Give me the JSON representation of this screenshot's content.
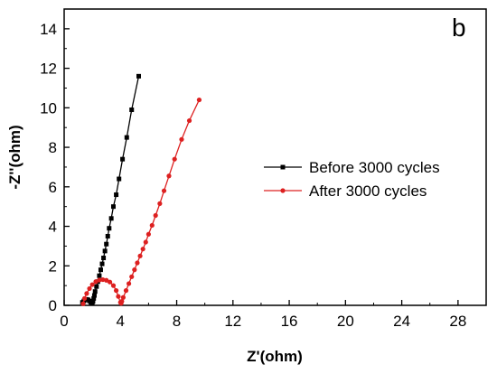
{
  "chart_data": {
    "type": "line",
    "panel_label": "b",
    "xlabel": "Z'(ohm)",
    "ylabel": "-Z''(ohm)",
    "xlim": [
      0,
      30
    ],
    "ylim": [
      0,
      15
    ],
    "xticks": [
      0,
      4,
      8,
      12,
      16,
      20,
      24,
      28
    ],
    "yticks": [
      0,
      2,
      4,
      6,
      8,
      10,
      12,
      14
    ],
    "grid": false,
    "legend_position": "right",
    "series": [
      {
        "name": "Before 3000 cycles",
        "color": "#000000",
        "marker": "square",
        "x": [
          1.3,
          1.4,
          1.5,
          1.6,
          1.7,
          1.8,
          1.9,
          2.0,
          2.05,
          2.1,
          2.15,
          2.2,
          2.3,
          2.4,
          2.5,
          2.6,
          2.7,
          2.8,
          2.9,
          3.0,
          3.1,
          3.2,
          3.35,
          3.5,
          3.7,
          3.9,
          4.15,
          4.45,
          4.8,
          5.3
        ],
        "y": [
          0.15,
          0.22,
          0.28,
          0.3,
          0.28,
          0.22,
          0.15,
          0.1,
          0.2,
          0.35,
          0.5,
          0.7,
          0.95,
          1.2,
          1.5,
          1.8,
          2.1,
          2.4,
          2.75,
          3.1,
          3.5,
          3.9,
          4.4,
          5.0,
          5.6,
          6.4,
          7.4,
          8.5,
          9.9,
          11.6
        ]
      },
      {
        "name": "After 3000 cycles",
        "color": "#dd2020",
        "marker": "circle",
        "x": [
          1.35,
          1.45,
          1.6,
          1.8,
          2.0,
          2.25,
          2.5,
          2.75,
          3.0,
          3.25,
          3.5,
          3.7,
          3.85,
          4.0,
          4.05,
          4.1,
          4.2,
          4.4,
          4.6,
          4.8,
          5.0,
          5.2,
          5.4,
          5.6,
          5.8,
          6.0,
          6.25,
          6.5,
          6.8,
          7.1,
          7.45,
          7.85,
          8.35,
          8.9,
          9.6
        ],
        "y": [
          0.08,
          0.35,
          0.6,
          0.85,
          1.05,
          1.2,
          1.28,
          1.3,
          1.27,
          1.18,
          1.0,
          0.75,
          0.45,
          0.15,
          0.1,
          0.2,
          0.4,
          0.75,
          1.1,
          1.45,
          1.8,
          2.15,
          2.5,
          2.85,
          3.2,
          3.6,
          4.05,
          4.55,
          5.15,
          5.8,
          6.55,
          7.4,
          8.4,
          9.35,
          10.4
        ]
      }
    ]
  }
}
